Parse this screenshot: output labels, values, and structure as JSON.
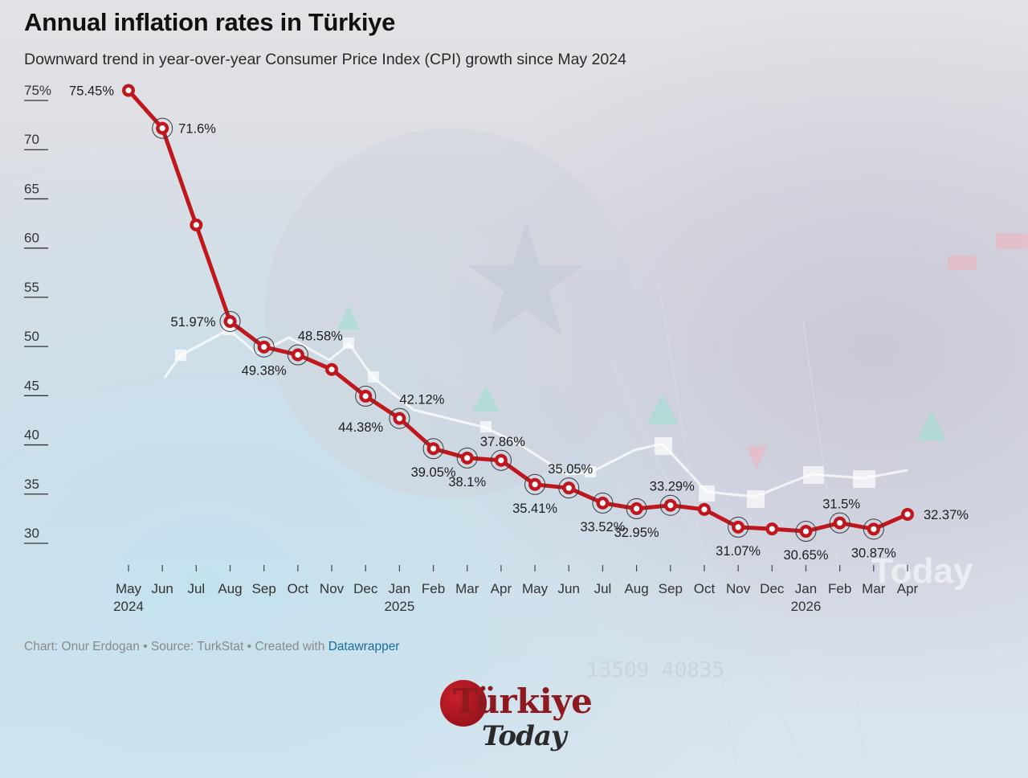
{
  "header": {
    "title": "Annual inflation rates in Türkiye",
    "subtitle": "Downward trend in year-over-year Consumer Price Index (CPI) growth since May 2024"
  },
  "footer": {
    "credit": "Chart: Onur Erdogan • Source: TurkStat • Created with ",
    "tool_link": "Datawrapper"
  },
  "logo": {
    "name": "Türkiye",
    "tagline": "Today"
  },
  "colors": {
    "line": "#c0171e",
    "marker_fill": "#ffffff",
    "text": "#1a1a1a"
  },
  "chart_data": {
    "type": "line",
    "title": "Annual inflation rates in Türkiye",
    "subtitle": "Downward trend in year-over-year Consumer Price Index (CPI) growth since May 2024",
    "ylim": [
      30,
      75
    ],
    "yticks": [
      75,
      70,
      65,
      60,
      55,
      50,
      45,
      40,
      35,
      30
    ],
    "ytick_labels": [
      "75%",
      "70",
      "65",
      "60",
      "55",
      "50",
      "45",
      "40",
      "35",
      "30"
    ],
    "x": [
      "May 2024",
      "Jun 2024",
      "Jul 2024",
      "Aug 2024",
      "Sep 2024",
      "Oct 2024",
      "Nov 2024",
      "Dec 2024",
      "Jan 2025",
      "Feb 2025",
      "Mar 2025",
      "Apr 2025",
      "May 2025",
      "Jun 2025",
      "Jul 2025",
      "Aug 2025",
      "Sep 2025",
      "Oct 2025",
      "Nov 2025",
      "Dec 2025",
      "Jan 2026",
      "Feb 2026",
      "Mar 2026",
      "Apr 2026"
    ],
    "xtick_labels": [
      "May",
      "Jun",
      "Jul",
      "Aug",
      "Sep",
      "Oct",
      "Nov",
      "Dec",
      "Jan",
      "Feb",
      "Mar",
      "Apr",
      "May",
      "Jun",
      "Jul",
      "Aug",
      "Sep",
      "Oct",
      "Nov",
      "Dec",
      "Jan",
      "Feb",
      "Mar",
      "Apr"
    ],
    "year_labels": [
      {
        "index": 0,
        "label": "2024"
      },
      {
        "index": 8,
        "label": "2025"
      },
      {
        "index": 20,
        "label": "2026"
      }
    ],
    "series": [
      {
        "values": [
          75.45,
          71.6,
          61.78,
          51.97,
          49.38,
          48.58,
          47.09,
          44.38,
          42.12,
          39.05,
          38.1,
          37.86,
          35.41,
          35.05,
          33.52,
          32.95,
          33.29,
          32.87,
          31.07,
          30.89,
          30.65,
          31.5,
          30.87,
          32.37
        ]
      }
    ],
    "data_labels": [
      {
        "index": 0,
        "text": "75.45%",
        "pos": "left"
      },
      {
        "index": 1,
        "text": "71.6%",
        "pos": "right"
      },
      {
        "index": 3,
        "text": "51.97%",
        "pos": "left"
      },
      {
        "index": 4,
        "text": "49.38%",
        "pos": "below"
      },
      {
        "index": 5,
        "text": "48.58%",
        "pos": "above"
      },
      {
        "index": 7,
        "text": "44.38%",
        "pos": "below-left"
      },
      {
        "index": 8,
        "text": "42.12%",
        "pos": "above"
      },
      {
        "index": 9,
        "text": "39.05%",
        "pos": "below"
      },
      {
        "index": 10,
        "text": "38.1%",
        "pos": "below"
      },
      {
        "index": 11,
        "text": "37.86%",
        "pos": "above"
      },
      {
        "index": 12,
        "text": "35.41%",
        "pos": "below"
      },
      {
        "index": 13,
        "text": "35.05%",
        "pos": "above"
      },
      {
        "index": 14,
        "text": "33.52%",
        "pos": "below"
      },
      {
        "index": 15,
        "text": "32.95%",
        "pos": "below"
      },
      {
        "index": 16,
        "text": "33.29%",
        "pos": "above"
      },
      {
        "index": 18,
        "text": "31.07%",
        "pos": "below"
      },
      {
        "index": 20,
        "text": "30.65%",
        "pos": "below"
      },
      {
        "index": 21,
        "text": "31.5%",
        "pos": "above"
      },
      {
        "index": 22,
        "text": "30.87%",
        "pos": "below"
      },
      {
        "index": 23,
        "text": "32.37%",
        "pos": "right"
      }
    ],
    "highlighted_points": [
      1,
      3,
      4,
      5,
      7,
      8,
      9,
      10,
      11,
      12,
      13,
      14,
      15,
      16,
      18,
      20,
      21,
      22
    ],
    "grid": false
  }
}
